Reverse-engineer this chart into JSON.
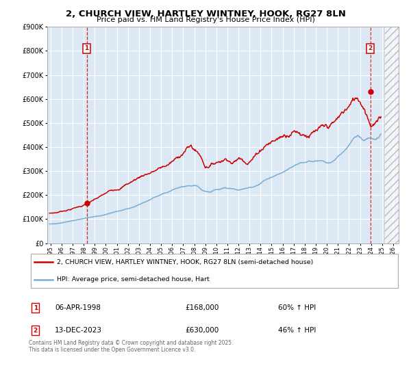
{
  "title": "2, CHURCH VIEW, HARTLEY WINTNEY, HOOK, RG27 8LN",
  "subtitle": "Price paid vs. HM Land Registry's House Price Index (HPI)",
  "legend_line1": "2, CHURCH VIEW, HARTLEY WINTNEY, HOOK, RG27 8LN (semi-detached house)",
  "legend_line2": "HPI: Average price, semi-detached house, Hart",
  "annotation1": {
    "label": "1",
    "date": "06-APR-1998",
    "price": 168000,
    "pct": "60% ↑ HPI"
  },
  "annotation2": {
    "label": "2",
    "date": "13-DEC-2023",
    "price": 630000,
    "pct": "46% ↑ HPI"
  },
  "footer": "Contains HM Land Registry data © Crown copyright and database right 2025.\nThis data is licensed under the Open Government Licence v3.0.",
  "red_color": "#cc0000",
  "blue_color": "#7aadd4",
  "background_chart": "#dde8f5",
  "background_fig": "#ffffff",
  "grid_color": "#ffffff",
  "ylim": [
    0,
    900000
  ],
  "yticks": [
    0,
    100000,
    200000,
    300000,
    400000,
    500000,
    600000,
    700000,
    800000,
    900000
  ],
  "xlim_start": 1994.7,
  "xlim_end": 2026.5,
  "xticks": [
    1995,
    1996,
    1997,
    1998,
    1999,
    2000,
    2001,
    2002,
    2003,
    2004,
    2005,
    2006,
    2007,
    2008,
    2009,
    2010,
    2011,
    2012,
    2013,
    2014,
    2015,
    2016,
    2017,
    2018,
    2019,
    2020,
    2021,
    2022,
    2023,
    2024,
    2025,
    2026
  ],
  "ann1_x": 1998.27,
  "ann1_y": 168000,
  "ann2_x": 2023.95,
  "ann2_y": 630000,
  "vline1_x": 1998.27,
  "vline2_x": 2023.95,
  "hatch_start": 2025.17
}
